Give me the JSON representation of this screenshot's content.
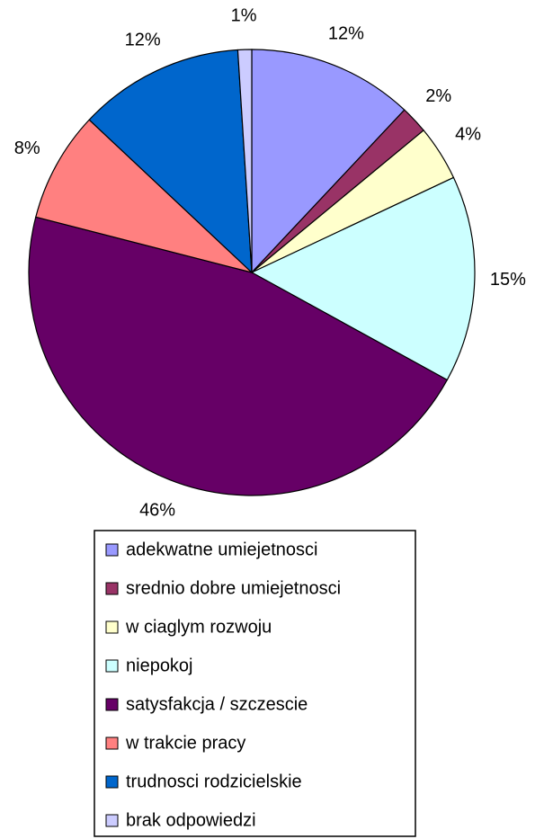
{
  "chart_data": {
    "type": "pie",
    "categories": [
      "adekwatne umiejetnosci",
      "srednio dobre umiejetnosci",
      "w ciaglym rozwoju",
      "niepokoj",
      "satysfakcja / szczescie",
      "w trakcie pracy",
      "trudnosci rodzicielskie",
      "brak odpowiedzi"
    ],
    "values": [
      12,
      2,
      4,
      15,
      46,
      8,
      12,
      1
    ],
    "value_labels": [
      "12%",
      "2%",
      "4%",
      "15%",
      "46%",
      "8%",
      "12%",
      "1%"
    ],
    "colors": [
      "#9999ff",
      "#993366",
      "#ffffcc",
      "#ccffff",
      "#660066",
      "#ff8080",
      "#0066cc",
      "#ccccff"
    ]
  }
}
